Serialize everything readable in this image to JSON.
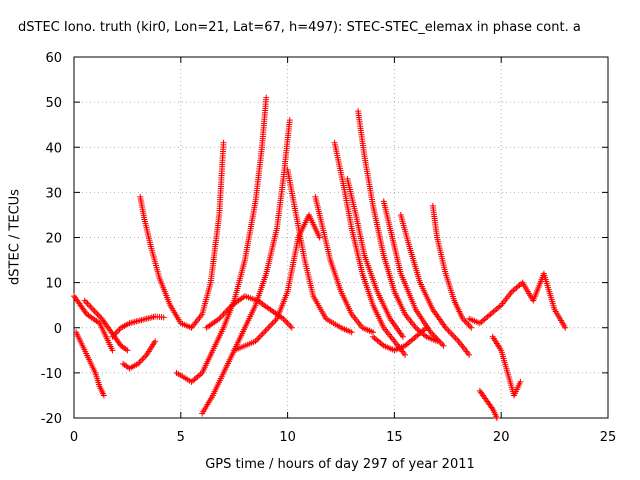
{
  "chart_data": {
    "type": "scatter",
    "title": "dSTEC Iono. truth (kir0, Lon=21, Lat=67, h=497): STEC-STEC_elemax in phase cont. a",
    "xlabel": "GPS time / hours of day 297 of year 2011",
    "ylabel": "dSTEC  / TECUs",
    "xlim": [
      0,
      25
    ],
    "ylim": [
      -20,
      60
    ],
    "xticks": [
      "0",
      "5",
      "10",
      "15",
      "20",
      "25"
    ],
    "yticks": [
      "-20",
      "-10",
      "0",
      "10",
      "20",
      "30",
      "40",
      "50",
      "60"
    ],
    "grid": true,
    "marker": "+",
    "color": "#ff0000",
    "series": [
      {
        "x": [
          0.0,
          0.3,
          0.6,
          0.9,
          1.2,
          1.5,
          1.8
        ],
        "y": [
          7,
          5,
          3,
          2,
          1,
          -2,
          -5
        ]
      },
      {
        "x": [
          0.1,
          0.4,
          0.7,
          1.0,
          1.2,
          1.4
        ],
        "y": [
          -1,
          -4,
          -7,
          -10,
          -13,
          -15
        ]
      },
      {
        "x": [
          0.5,
          0.9,
          1.3,
          1.6,
          1.9,
          2.2,
          2.5
        ],
        "y": [
          6,
          4,
          2,
          0,
          -2,
          -4,
          -5
        ]
      },
      {
        "x": [
          1.8,
          2.2,
          2.6,
          3.0,
          3.4,
          3.8,
          4.2
        ],
        "y": [
          -2,
          0,
          1,
          1.5,
          2,
          2.5,
          2.3
        ]
      },
      {
        "x": [
          2.3,
          2.6,
          3.0,
          3.4,
          3.8
        ],
        "y": [
          -8,
          -9,
          -8,
          -6,
          -3
        ]
      },
      {
        "x": [
          3.1,
          3.3,
          3.6,
          4.0,
          4.5,
          5.0,
          5.5,
          6.0,
          6.4,
          6.8,
          7.0
        ],
        "y": [
          29,
          24,
          18,
          11,
          5,
          1,
          0,
          3,
          10,
          25,
          41
        ]
      },
      {
        "x": [
          4.8,
          5.5,
          6.0,
          6.5,
          7.0,
          7.5,
          8.0,
          8.5,
          8.8,
          9.0
        ],
        "y": [
          -10,
          -12,
          -10,
          -5,
          0,
          6,
          15,
          28,
          40,
          51
        ]
      },
      {
        "x": [
          6.0,
          6.5,
          7.0,
          7.5,
          8.0,
          8.5,
          9.0,
          9.5,
          9.8,
          10.1
        ],
        "y": [
          -19,
          -15,
          -10,
          -5,
          0,
          5,
          12,
          22,
          33,
          46
        ]
      },
      {
        "x": [
          6.2,
          6.8,
          7.4,
          8.0,
          8.6,
          9.2,
          9.8,
          10.2
        ],
        "y": [
          0,
          2,
          5,
          7,
          6,
          4,
          2,
          0
        ]
      },
      {
        "x": [
          7.5,
          8.5,
          9.5,
          10.0,
          10.5,
          11.0,
          11.5
        ],
        "y": [
          -5,
          -3,
          2,
          8,
          20,
          25,
          20
        ]
      },
      {
        "x": [
          10.0,
          10.4,
          10.8,
          11.2,
          11.8,
          12.5,
          13.0
        ],
        "y": [
          35,
          25,
          15,
          7,
          2,
          0,
          -1
        ]
      },
      {
        "x": [
          11.3,
          11.6,
          12.0,
          12.5,
          13.0,
          13.5,
          14.0
        ],
        "y": [
          29,
          23,
          15,
          8,
          3,
          0,
          -1
        ]
      },
      {
        "x": [
          12.2,
          12.6,
          13.0,
          13.5,
          14.0,
          14.5,
          15.0,
          15.5
        ],
        "y": [
          41,
          32,
          22,
          12,
          5,
          0,
          -3,
          -6
        ]
      },
      {
        "x": [
          12.8,
          13.2,
          13.6,
          14.2,
          14.8,
          15.4
        ],
        "y": [
          33,
          25,
          16,
          8,
          2,
          -2
        ]
      },
      {
        "x": [
          13.3,
          13.6,
          14.0,
          14.5,
          15.0,
          15.5,
          16.0,
          16.5,
          17.0
        ],
        "y": [
          48,
          38,
          27,
          16,
          8,
          3,
          0,
          -2,
          -3
        ]
      },
      {
        "x": [
          14.5,
          14.8,
          15.3,
          16.0,
          16.7,
          17.3
        ],
        "y": [
          28,
          22,
          12,
          4,
          -1,
          -4
        ]
      },
      {
        "x": [
          15.3,
          15.7,
          16.2,
          16.8,
          17.4,
          18.0,
          18.5
        ],
        "y": [
          25,
          18,
          10,
          4,
          0,
          -3,
          -6
        ]
      },
      {
        "x": [
          16.8,
          17.0,
          17.4,
          17.8,
          18.2,
          18.6
        ],
        "y": [
          27,
          20,
          12,
          6,
          2,
          0
        ]
      },
      {
        "x": [
          14.0,
          14.5,
          15.0,
          15.5,
          16.0,
          16.5
        ],
        "y": [
          -2,
          -4,
          -5,
          -4,
          -2,
          0
        ]
      },
      {
        "x": [
          19.0,
          19.3,
          19.6,
          19.8
        ],
        "y": [
          -14,
          -16,
          -18,
          -20
        ]
      },
      {
        "x": [
          18.5,
          19.0,
          19.5,
          20.0,
          20.5,
          21.0,
          21.5,
          22.0,
          22.5,
          23.0
        ],
        "y": [
          2,
          1,
          3,
          5,
          8,
          10,
          6,
          12,
          4,
          0
        ]
      },
      {
        "x": [
          19.6,
          20.0,
          20.3,
          20.6,
          20.9
        ],
        "y": [
          -2,
          -5,
          -10,
          -15,
          -12
        ]
      }
    ]
  }
}
